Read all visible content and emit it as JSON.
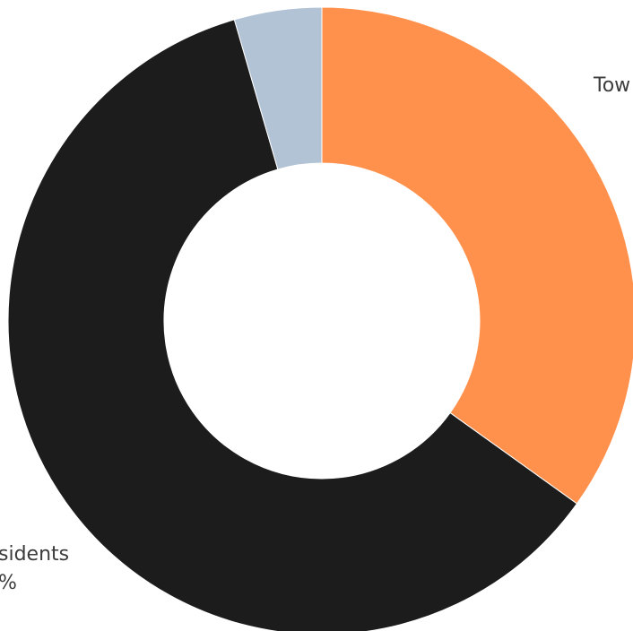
{
  "chart_data": {
    "type": "pie",
    "donut": true,
    "slices": [
      {
        "label": "Tow",
        "value": 34.9,
        "color": "#ff914d",
        "value_text": ""
      },
      {
        "label": "sidents",
        "value": 60.6,
        "color": "#1c1c1c",
        "value_text": "%"
      },
      {
        "label": "",
        "value": 4.5,
        "color": "#b3c3d6",
        "value_text": ""
      }
    ],
    "legend": "none"
  }
}
